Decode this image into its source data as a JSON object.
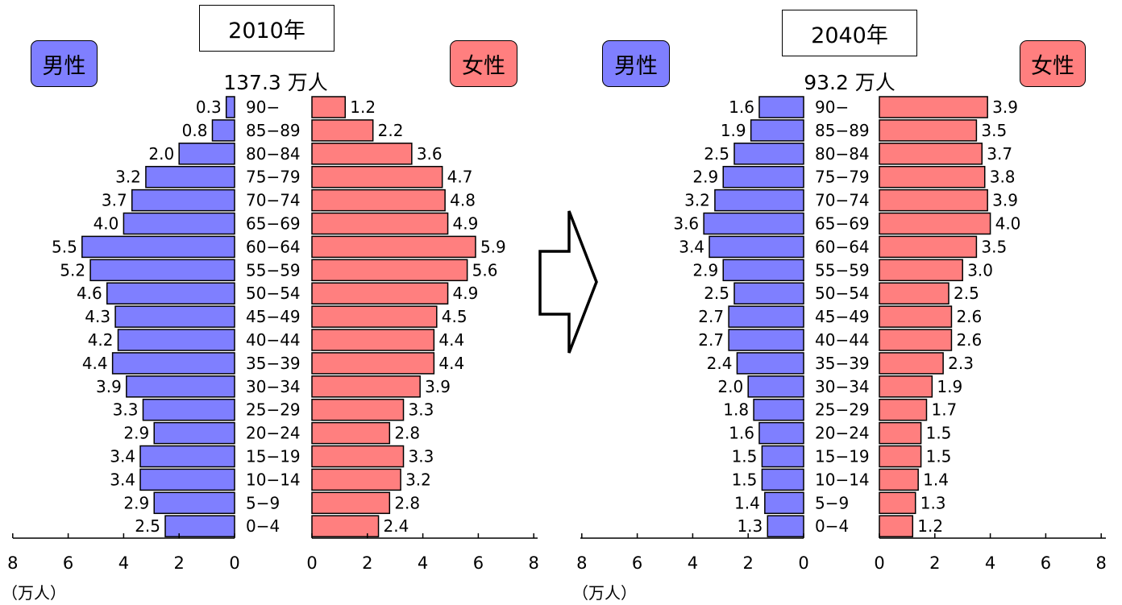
{
  "colors": {
    "male": "#7F7FFF",
    "female": "#FF7F7F",
    "stroke": "#000000"
  },
  "labels": {
    "male": "男性",
    "female": "女性",
    "unit": "（万人）"
  },
  "age_groups": [
    "90−",
    "85−89",
    "80−84",
    "75−79",
    "70−74",
    "65−69",
    "60−64",
    "55−59",
    "50−54",
    "45−49",
    "40−44",
    "35−39",
    "30−34",
    "25−29",
    "20−24",
    "15−19",
    "10−14",
    "5−9",
    "0−4"
  ],
  "charts": [
    {
      "year_label": "2010年",
      "total_label": "137.3 万人"
    },
    {
      "year_label": "2040年",
      "total_label": "93.2 万人"
    }
  ],
  "chart_data": [
    {
      "type": "bar",
      "title": "2010年",
      "subtitle": "137.3 万人",
      "categories": [
        "90−",
        "85−89",
        "80−84",
        "75−79",
        "70−74",
        "65−69",
        "60−64",
        "55−59",
        "50−54",
        "45−49",
        "40−44",
        "35−39",
        "30−34",
        "25−29",
        "20−24",
        "15−19",
        "10−14",
        "5−9",
        "0−4"
      ],
      "series": [
        {
          "name": "男性",
          "values": [
            0.3,
            0.8,
            2.0,
            3.2,
            3.7,
            4.0,
            5.5,
            5.2,
            4.6,
            4.3,
            4.2,
            4.4,
            3.9,
            3.3,
            2.9,
            3.4,
            3.4,
            2.9,
            2.5
          ]
        },
        {
          "name": "女性",
          "values": [
            1.2,
            2.2,
            3.6,
            4.7,
            4.8,
            4.9,
            5.9,
            5.6,
            4.9,
            4.5,
            4.4,
            4.4,
            3.9,
            3.3,
            2.8,
            3.3,
            3.2,
            2.8,
            2.4
          ]
        }
      ],
      "value_labels": {
        "male": [
          "0.3",
          "0.8",
          "2.0",
          "3.2",
          "3.7",
          "4.0",
          "5.5",
          "5.2",
          "4.6",
          "4.3",
          "4.2",
          "4.4",
          "3.9",
          "3.3",
          "2.9",
          "3.4",
          "3.4",
          "2.9",
          "2.5"
        ],
        "female": [
          "1.2",
          "2.2",
          "3.6",
          "4.7",
          "4.8",
          "4.9",
          "5.9",
          "5.6",
          "4.9",
          "4.5",
          "4.4",
          "4.4",
          "3.9",
          "3.3",
          "2.8",
          "3.3",
          "3.2",
          "2.8",
          "2.4"
        ]
      },
      "xlim": [
        0,
        8
      ],
      "xticks": [
        "8",
        "6",
        "4",
        "2",
        "0"
      ],
      "xticks_female": [
        "0",
        "2",
        "4",
        "6",
        "8"
      ],
      "xlabel": "（万人）"
    },
    {
      "type": "bar",
      "title": "2040年",
      "subtitle": "93.2 万人",
      "categories": [
        "90−",
        "85−89",
        "80−84",
        "75−79",
        "70−74",
        "65−69",
        "60−64",
        "55−59",
        "50−54",
        "45−49",
        "40−44",
        "35−39",
        "30−34",
        "25−29",
        "20−24",
        "15−19",
        "10−14",
        "5−9",
        "0−4"
      ],
      "series": [
        {
          "name": "男性",
          "values": [
            1.6,
            1.9,
            2.5,
            2.9,
            3.2,
            3.6,
            3.4,
            2.9,
            2.5,
            2.7,
            2.7,
            2.4,
            2.0,
            1.8,
            1.6,
            1.5,
            1.5,
            1.4,
            1.3
          ]
        },
        {
          "name": "女性",
          "values": [
            3.9,
            3.5,
            3.7,
            3.8,
            3.9,
            4.0,
            3.5,
            3.0,
            2.5,
            2.6,
            2.6,
            2.3,
            1.9,
            1.7,
            1.5,
            1.5,
            1.4,
            1.3,
            1.2
          ]
        }
      ],
      "value_labels": {
        "male": [
          "1.6",
          "1.9",
          "2.5",
          "2.9",
          "3.2",
          "3.6",
          "3.4",
          "2.9",
          "2.5",
          "2.7",
          "2.7",
          "2.4",
          "2.0",
          "1.8",
          "1.6",
          "1.5",
          "1.5",
          "1.4",
          "1.3"
        ],
        "female": [
          "3.9",
          "3.5",
          "3.7",
          "3.8",
          "3.9",
          "4.0",
          "3.5",
          "3.0",
          "2.5",
          "2.6",
          "2.6",
          "2.3",
          "1.9",
          "1.7",
          "1.5",
          "1.5",
          "1.4",
          "1.3",
          "1.2"
        ]
      },
      "xlim": [
        0,
        8
      ],
      "xticks": [
        "8",
        "6",
        "4",
        "2",
        "0"
      ],
      "xticks_female": [
        "0",
        "2",
        "4",
        "6",
        "8"
      ],
      "xlabel": "（万人）"
    }
  ]
}
